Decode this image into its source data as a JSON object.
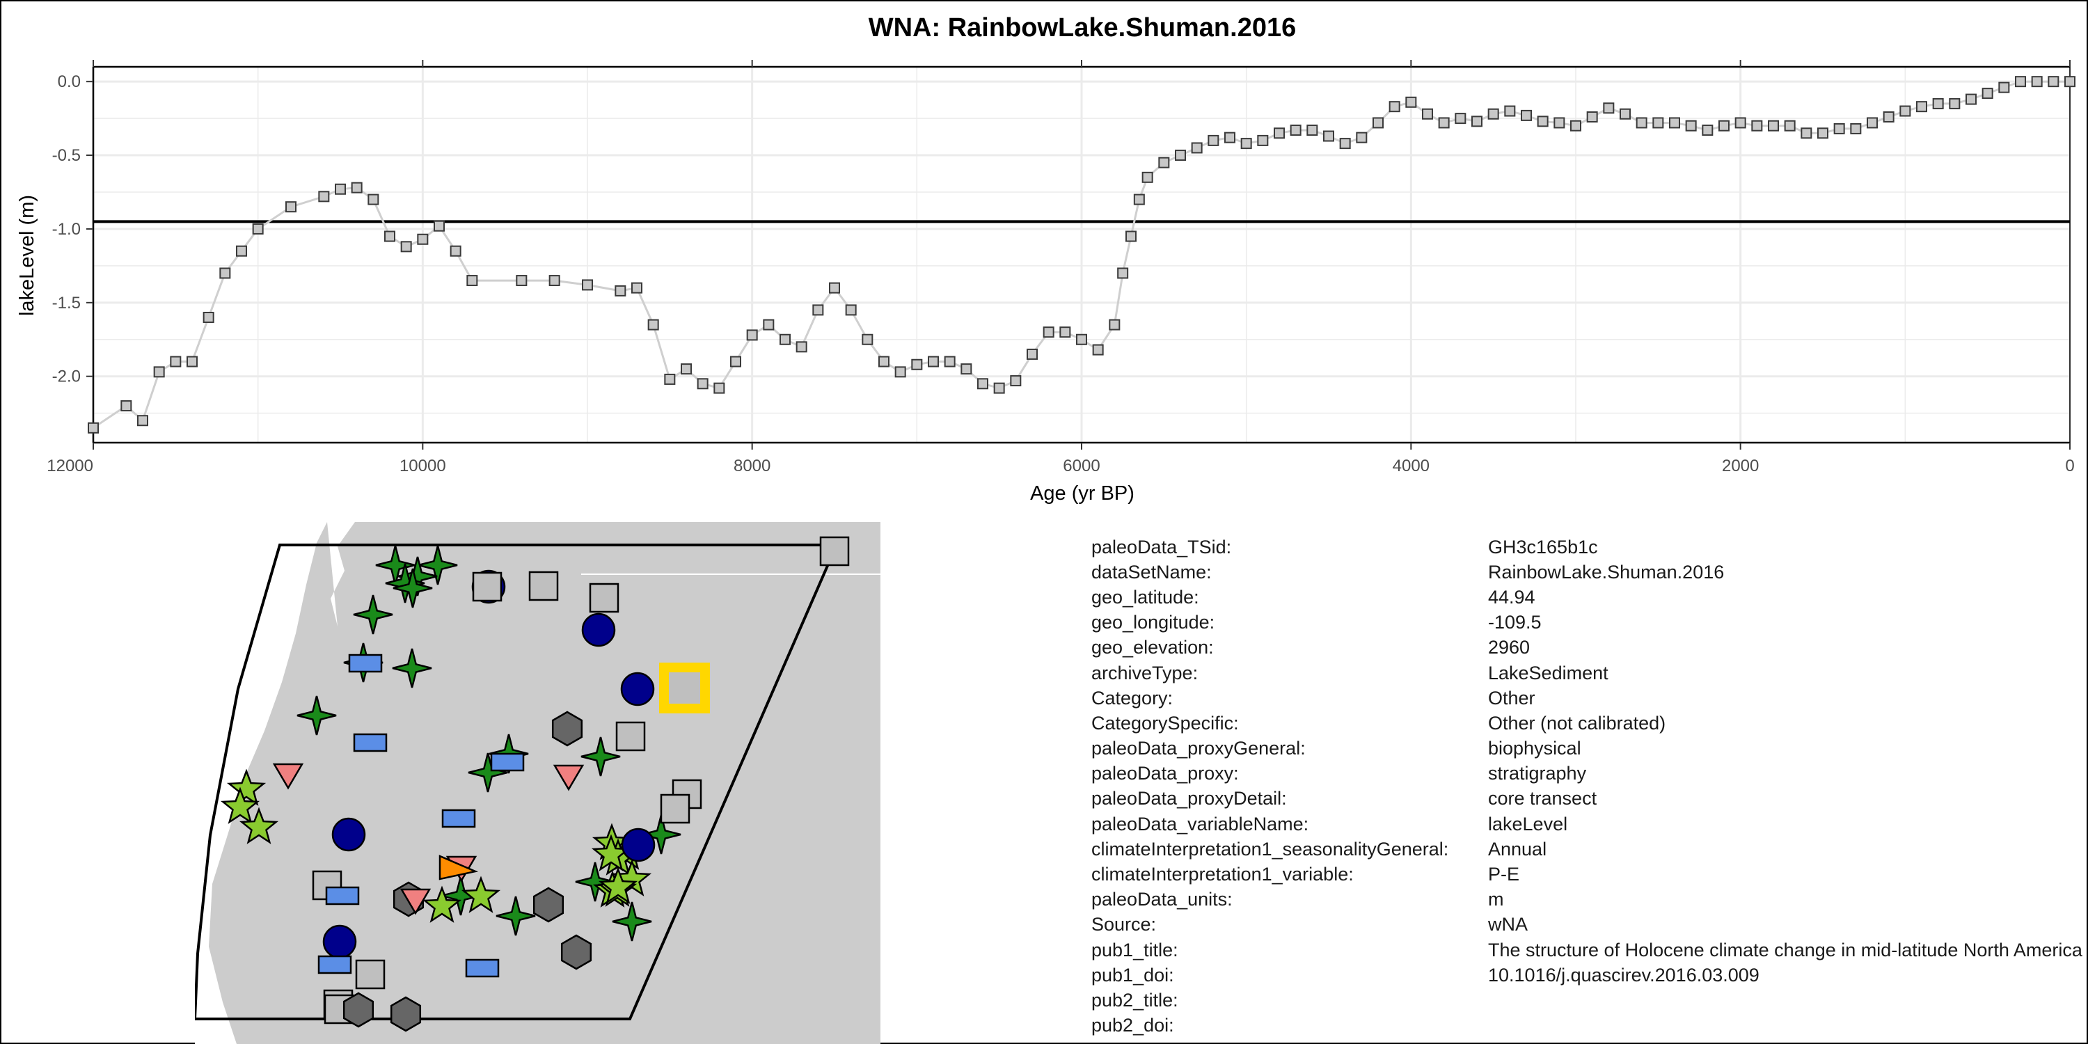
{
  "chart_data": {
    "type": "line",
    "title": "WNA: RainbowLake.Shuman.2016",
    "xlabel": "Age (yr BP)",
    "ylabel": "lakeLevel (m)",
    "xlim": [
      12000,
      0
    ],
    "ylim": [
      -2.45,
      0.1
    ],
    "x_reversed": true,
    "x_ticks": [
      12000,
      10000,
      8000,
      6000,
      4000,
      2000,
      0
    ],
    "x_tick_labels": [
      "12000",
      "10000",
      "8000",
      "6000",
      "4000",
      "2000",
      "0"
    ],
    "y_ticks": [
      0.0,
      -0.5,
      -1.0,
      -1.5,
      -2.0
    ],
    "y_tick_labels": [
      "0.0",
      "-0.5",
      "-1.0",
      "-1.5",
      "-2.0"
    ],
    "reference_line": -0.95,
    "grid": true,
    "marker": "square",
    "series": [
      {
        "points": [
          [
            12000,
            -2.35
          ],
          [
            11800,
            -2.2
          ],
          [
            11700,
            -2.3
          ],
          [
            11600,
            -1.97
          ],
          [
            11500,
            -1.9
          ],
          [
            11400,
            -1.9
          ],
          [
            11300,
            -1.6
          ],
          [
            11200,
            -1.3
          ],
          [
            11100,
            -1.15
          ],
          [
            11000,
            -1.0
          ],
          [
            10800,
            -0.85
          ],
          [
            10600,
            -0.78
          ],
          [
            10500,
            -0.73
          ],
          [
            10400,
            -0.72
          ],
          [
            10300,
            -0.8
          ],
          [
            10200,
            -1.05
          ],
          [
            10100,
            -1.12
          ],
          [
            10000,
            -1.07
          ],
          [
            9900,
            -0.98
          ],
          [
            9800,
            -1.15
          ],
          [
            9700,
            -1.35
          ],
          [
            9400,
            -1.35
          ],
          [
            9200,
            -1.35
          ],
          [
            9000,
            -1.38
          ],
          [
            8800,
            -1.42
          ],
          [
            8700,
            -1.4
          ],
          [
            8600,
            -1.65
          ],
          [
            8500,
            -2.02
          ],
          [
            8400,
            -1.95
          ],
          [
            8300,
            -2.05
          ],
          [
            8200,
            -2.08
          ],
          [
            8100,
            -1.9
          ],
          [
            8000,
            -1.72
          ],
          [
            7900,
            -1.65
          ],
          [
            7800,
            -1.75
          ],
          [
            7700,
            -1.8
          ],
          [
            7600,
            -1.55
          ],
          [
            7500,
            -1.4
          ],
          [
            7400,
            -1.55
          ],
          [
            7300,
            -1.75
          ],
          [
            7200,
            -1.9
          ],
          [
            7100,
            -1.97
          ],
          [
            7000,
            -1.92
          ],
          [
            6900,
            -1.9
          ],
          [
            6800,
            -1.9
          ],
          [
            6700,
            -1.95
          ],
          [
            6600,
            -2.05
          ],
          [
            6500,
            -2.08
          ],
          [
            6400,
            -2.03
          ],
          [
            6300,
            -1.85
          ],
          [
            6200,
            -1.7
          ],
          [
            6100,
            -1.7
          ],
          [
            6000,
            -1.75
          ],
          [
            5900,
            -1.82
          ],
          [
            5800,
            -1.65
          ],
          [
            5750,
            -1.3
          ],
          [
            5700,
            -1.05
          ],
          [
            5650,
            -0.8
          ],
          [
            5600,
            -0.65
          ],
          [
            5500,
            -0.55
          ],
          [
            5400,
            -0.5
          ],
          [
            5300,
            -0.45
          ],
          [
            5200,
            -0.4
          ],
          [
            5100,
            -0.38
          ],
          [
            5000,
            -0.42
          ],
          [
            4900,
            -0.4
          ],
          [
            4800,
            -0.35
          ],
          [
            4700,
            -0.33
          ],
          [
            4600,
            -0.33
          ],
          [
            4500,
            -0.37
          ],
          [
            4400,
            -0.42
          ],
          [
            4300,
            -0.38
          ],
          [
            4200,
            -0.28
          ],
          [
            4100,
            -0.17
          ],
          [
            4000,
            -0.14
          ],
          [
            3900,
            -0.22
          ],
          [
            3800,
            -0.28
          ],
          [
            3700,
            -0.25
          ],
          [
            3600,
            -0.27
          ],
          [
            3500,
            -0.22
          ],
          [
            3400,
            -0.2
          ],
          [
            3300,
            -0.23
          ],
          [
            3200,
            -0.27
          ],
          [
            3100,
            -0.28
          ],
          [
            3000,
            -0.3
          ],
          [
            2900,
            -0.24
          ],
          [
            2800,
            -0.18
          ],
          [
            2700,
            -0.22
          ],
          [
            2600,
            -0.28
          ],
          [
            2500,
            -0.28
          ],
          [
            2400,
            -0.28
          ],
          [
            2300,
            -0.3
          ],
          [
            2200,
            -0.33
          ],
          [
            2100,
            -0.3
          ],
          [
            2000,
            -0.28
          ],
          [
            1900,
            -0.3
          ],
          [
            1800,
            -0.3
          ],
          [
            1700,
            -0.3
          ],
          [
            1600,
            -0.35
          ],
          [
            1500,
            -0.35
          ],
          [
            1400,
            -0.32
          ],
          [
            1300,
            -0.32
          ],
          [
            1200,
            -0.28
          ],
          [
            1100,
            -0.24
          ],
          [
            1000,
            -0.2
          ],
          [
            900,
            -0.17
          ],
          [
            800,
            -0.15
          ],
          [
            700,
            -0.15
          ],
          [
            600,
            -0.12
          ],
          [
            500,
            -0.08
          ],
          [
            400,
            -0.04
          ],
          [
            300,
            0.0
          ],
          [
            200,
            0.0
          ],
          [
            100,
            0.0
          ],
          [
            0,
            0.0
          ]
        ]
      }
    ]
  },
  "map": {
    "colors": {
      "land": "#cccccc",
      "ocean": "#ffffff",
      "dark_green": "#1a8a1a",
      "light_green": "#8acb2f",
      "navy": "#00008b",
      "blue_rect": "#5b8ee6",
      "pink": "#f08080",
      "orange": "#ff8c00",
      "dark_gray": "#666666",
      "light_gray": "#bfbfbf",
      "highlight": "#ffd700"
    }
  },
  "metadata": [
    {
      "key": "paleoData_TSid:",
      "value": "GH3c165b1c"
    },
    {
      "key": "dataSetName:",
      "value": "RainbowLake.Shuman.2016"
    },
    {
      "key": "geo_latitude:",
      "value": "44.94"
    },
    {
      "key": "geo_longitude:",
      "value": "-109.5"
    },
    {
      "key": "geo_elevation:",
      "value": "2960"
    },
    {
      "key": "archiveType:",
      "value": "LakeSediment"
    },
    {
      "key": "Category:",
      "value": "Other"
    },
    {
      "key": "CategorySpecific:",
      "value": "Other (not calibrated)"
    },
    {
      "key": "paleoData_proxyGeneral:",
      "value": "biophysical"
    },
    {
      "key": "paleoData_proxy:",
      "value": "stratigraphy"
    },
    {
      "key": "paleoData_proxyDetail:",
      "value": "core transect"
    },
    {
      "key": "paleoData_variableName:",
      "value": "lakeLevel"
    },
    {
      "key": "climateInterpretation1_seasonalityGeneral:",
      "value": "Annual"
    },
    {
      "key": "climateInterpretation1_variable:",
      "value": "P-E"
    },
    {
      "key": "paleoData_units:",
      "value": "m"
    },
    {
      "key": "Source:",
      "value": "wNA"
    },
    {
      "key": "pub1_title:",
      "value": "The structure of Holocene climate change in mid-latitude North America"
    },
    {
      "key": "pub1_doi:",
      "value": "10.1016/j.quascirev.2016.03.009"
    },
    {
      "key": "pub2_title:",
      "value": ""
    },
    {
      "key": "pub2_doi:",
      "value": ""
    }
  ]
}
